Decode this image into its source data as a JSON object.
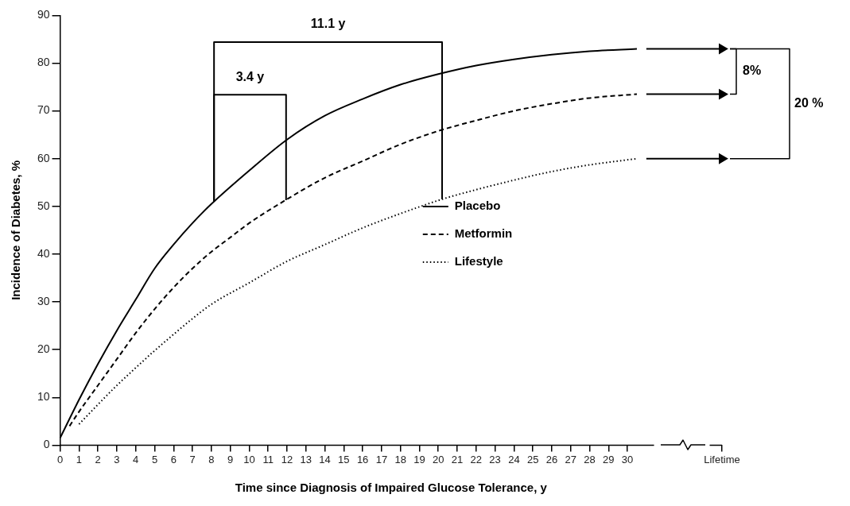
{
  "chart_data": {
    "type": "line",
    "xlabel": "Time since Diagnosis of Impaired Glucose Tolerance, y",
    "ylabel": "Incidence of Diabetes, %",
    "xlim": [
      0,
      35
    ],
    "xticks": [
      0,
      1,
      2,
      3,
      4,
      5,
      6,
      7,
      8,
      9,
      10,
      11,
      12,
      13,
      14,
      15,
      16,
      17,
      18,
      19,
      20,
      21,
      22,
      23,
      24,
      25,
      26,
      27,
      28,
      29,
      30,
      {
        "value": 35,
        "label": "Lifetime"
      }
    ],
    "ylim": [
      0,
      90
    ],
    "yticks": [
      0,
      10,
      20,
      30,
      40,
      50,
      60,
      70,
      80,
      90
    ],
    "grid": false,
    "legend": "center",
    "marker": "none",
    "series": [
      {
        "name": "Placebo",
        "color": "#000000",
        "line_style": "solid",
        "x": [
          0,
          1,
          2,
          3,
          4,
          5,
          6,
          7,
          8,
          10,
          12,
          14,
          16,
          18,
          20,
          22,
          24,
          26,
          28,
          30.5
        ],
        "values": [
          1.5,
          9.5,
          17,
          24,
          30.5,
          37,
          42,
          46.5,
          50.5,
          57.5,
          64,
          69,
          72.5,
          75.5,
          77.7,
          79.5,
          80.8,
          81.8,
          82.5,
          83
        ]
      },
      {
        "name": "Metformin",
        "color": "#000000",
        "line_style": "dashed",
        "x": [
          0.5,
          1,
          2,
          3,
          4,
          5,
          6,
          7,
          8,
          9,
          10,
          12,
          14,
          16,
          18,
          20,
          22,
          24,
          26,
          28,
          30.5
        ],
        "values": [
          4,
          7,
          12.5,
          18,
          23.5,
          28.5,
          33,
          37,
          40.5,
          43.5,
          46.5,
          51.5,
          56,
          59.5,
          63,
          65.8,
          68,
          70,
          71.5,
          72.7,
          73.5
        ]
      },
      {
        "name": "Lifestyle",
        "color": "#000000",
        "line_style": "dotted",
        "x": [
          1,
          2,
          3,
          4,
          5,
          6,
          7,
          8,
          10,
          12,
          14,
          16,
          18,
          20.2,
          22,
          24,
          26,
          28,
          30.5
        ],
        "values": [
          4.4,
          8.5,
          12.5,
          16.2,
          19.8,
          23.2,
          26.5,
          29.5,
          34,
          38.5,
          42,
          45.5,
          48.5,
          51.5,
          53.5,
          55.5,
          57.3,
          58.7,
          60
        ]
      },
      {
        "color": "#000000",
        "line_style": "solid",
        "marker": "triangle",
        "x": [
          31,
          35
        ],
        "values": [
          83,
          83
        ]
      },
      {
        "color": "#000000",
        "line_style": "solid",
        "marker": "triangle",
        "x": [
          31,
          35
        ],
        "values": [
          73.5,
          73.5
        ]
      },
      {
        "color": "#000000",
        "line_style": "solid",
        "marker": "triangle",
        "x": [
          31,
          35
        ],
        "values": [
          60,
          60
        ]
      },
      {
        "color": "#000000",
        "line_style": "solid",
        "marker": "none",
        "x": [
          8.14,
          8.14,
          11.95,
          11.95
        ],
        "values": [
          51,
          73.4,
          73.4,
          51.3
        ]
      },
      {
        "color": "#000000",
        "line_style": "solid",
        "marker": "none",
        "x": [
          8.14,
          8.14,
          20.2,
          20.2
        ],
        "values": [
          51,
          84.4,
          84.4,
          51.5
        ]
      }
    ],
    "annotations": [
      "3.4 y",
      "11.1 y",
      "8%",
      "20 %"
    ]
  }
}
